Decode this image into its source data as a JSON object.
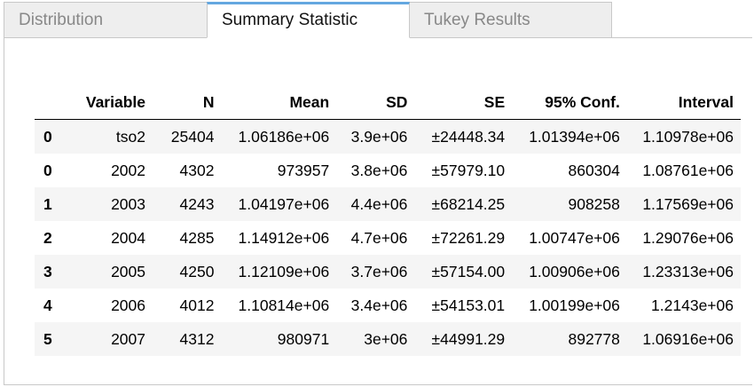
{
  "tabs": [
    {
      "label": "Distribution",
      "active": false
    },
    {
      "label": "Summary Statistic",
      "active": true
    },
    {
      "label": "Tukey Results",
      "active": false
    }
  ],
  "table": {
    "headers": [
      "",
      "Variable",
      "N",
      "Mean",
      "SD",
      "SE",
      "95% Conf.",
      "Interval"
    ],
    "rows": [
      [
        "0",
        "tso2",
        "25404",
        "1.06186e+06",
        "3.9e+06",
        "±24448.34",
        "1.01394e+06",
        "1.10978e+06"
      ],
      [
        "0",
        "2002",
        "4302",
        "973957",
        "3.8e+06",
        "±57979.10",
        "860304",
        "1.08761e+06"
      ],
      [
        "1",
        "2003",
        "4243",
        "1.04197e+06",
        "4.4e+06",
        "±68214.25",
        "908258",
        "1.17569e+06"
      ],
      [
        "2",
        "2004",
        "4285",
        "1.14912e+06",
        "4.7e+06",
        "±72261.29",
        "1.00747e+06",
        "1.29076e+06"
      ],
      [
        "3",
        "2005",
        "4250",
        "1.12109e+06",
        "3.7e+06",
        "±57154.00",
        "1.00906e+06",
        "1.23313e+06"
      ],
      [
        "4",
        "2006",
        "4012",
        "1.10814e+06",
        "3.4e+06",
        "±54153.01",
        "1.00199e+06",
        "1.2143e+06"
      ],
      [
        "5",
        "2007",
        "4312",
        "980971",
        "3e+06",
        "±44991.29",
        "892778",
        "1.06916e+06"
      ]
    ]
  },
  "colors": {
    "active_tab_accent": "#64a7e0",
    "inactive_tab_bg": "#eeeeee",
    "row_stripe": "#f5f5f5"
  }
}
